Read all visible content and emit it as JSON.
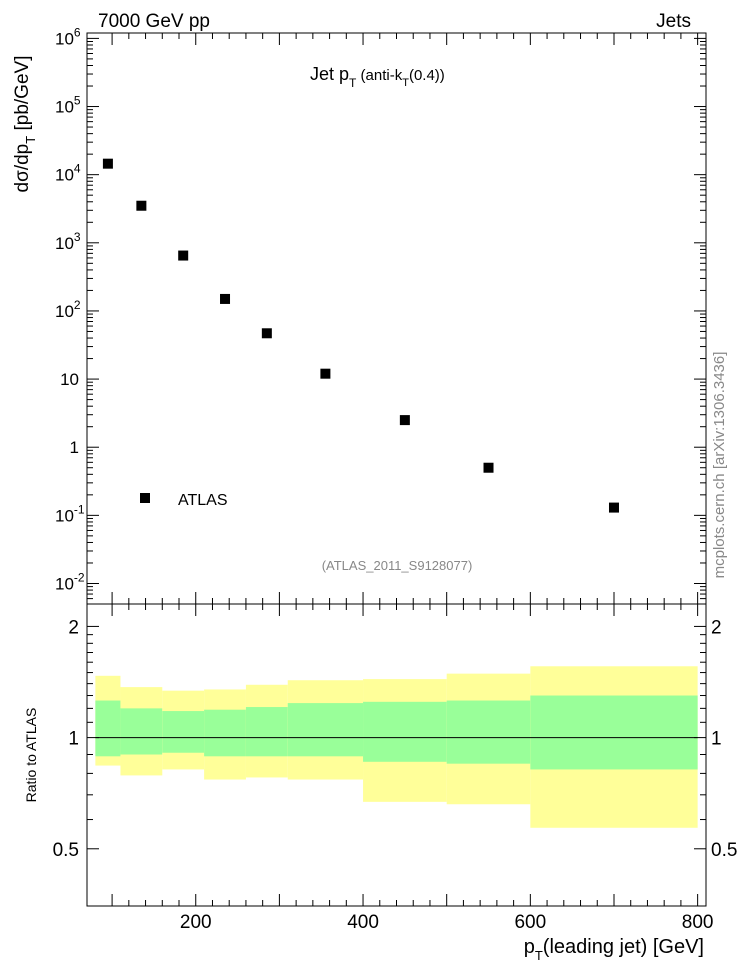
{
  "header": {
    "left": "7000 GeV pp",
    "right": "Jets"
  },
  "side_label": "mcplots.cern.ch [arXiv:1306.3436]",
  "chart_data": [
    {
      "type": "scatter",
      "title": {
        "main": "Jet p",
        "sub": "T",
        "extra_pre": " (anti-k",
        "extra_sub": "T",
        "extra_post": "(0.4))"
      },
      "ylabel": {
        "main": "dσ/dp",
        "sub": "T",
        "post": " [pb/GeV]"
      },
      "yscale": "log",
      "ylim": [
        0.005,
        1200000
      ],
      "xlim": [
        70,
        810
      ],
      "y_ticks": [
        {
          "value": 0.01,
          "base": "10",
          "exp": "-2"
        },
        {
          "value": 0.1,
          "base": "10",
          "exp": "-1"
        },
        {
          "value": 1,
          "base": "1",
          "exp": ""
        },
        {
          "value": 10,
          "base": "10",
          "exp": ""
        },
        {
          "value": 100,
          "base": "10",
          "exp": "2"
        },
        {
          "value": 1000,
          "base": "10",
          "exp": "3"
        },
        {
          "value": 10000,
          "base": "10",
          "exp": "4"
        },
        {
          "value": 100000,
          "base": "10",
          "exp": "5"
        },
        {
          "value": 1000000,
          "base": "10",
          "exp": "6"
        }
      ],
      "series": [
        {
          "name": "ATLAS",
          "x": [
            95,
            135,
            185,
            235,
            285,
            355,
            450,
            550,
            700
          ],
          "y": [
            14500,
            3500,
            650,
            150,
            47,
            12,
            2.5,
            0.5,
            0.13
          ]
        }
      ],
      "legend_position": "bottom-left",
      "analysis_label": "(ATLAS_2011_S9128077)"
    },
    {
      "type": "area",
      "ylabel": "Ratio to ATLAS",
      "xlabel": {
        "main": "p",
        "sub": "T",
        "post": "(leading jet) [GeV]"
      },
      "ylim": [
        0.35,
        2.3
      ],
      "xlim": [
        70,
        810
      ],
      "x_ticks": [
        200,
        400,
        600,
        800
      ],
      "y_ticks": [
        0.5,
        1,
        2
      ],
      "reference_line": 1,
      "bins": [
        {
          "x0": 80,
          "x1": 110,
          "yellow": [
            0.84,
            1.47
          ],
          "green": [
            0.89,
            1.26
          ]
        },
        {
          "x0": 110,
          "x1": 160,
          "yellow": [
            0.79,
            1.37
          ],
          "green": [
            0.9,
            1.2
          ]
        },
        {
          "x0": 160,
          "x1": 210,
          "yellow": [
            0.82,
            1.34
          ],
          "green": [
            0.91,
            1.18
          ]
        },
        {
          "x0": 210,
          "x1": 260,
          "yellow": [
            0.77,
            1.35
          ],
          "green": [
            0.89,
            1.19
          ]
        },
        {
          "x0": 260,
          "x1": 310,
          "yellow": [
            0.78,
            1.39
          ],
          "green": [
            0.89,
            1.21
          ]
        },
        {
          "x0": 310,
          "x1": 400,
          "yellow": [
            0.77,
            1.43
          ],
          "green": [
            0.89,
            1.24
          ]
        },
        {
          "x0": 400,
          "x1": 500,
          "yellow": [
            0.67,
            1.44
          ],
          "green": [
            0.86,
            1.25
          ]
        },
        {
          "x0": 500,
          "x1": 600,
          "yellow": [
            0.66,
            1.49
          ],
          "green": [
            0.85,
            1.26
          ]
        },
        {
          "x0": 600,
          "x1": 800,
          "yellow": [
            0.57,
            1.56
          ],
          "green": [
            0.82,
            1.3
          ]
        }
      ],
      "colors": {
        "yellow": "#ffff99",
        "green": "#99ff99",
        "marker": "#000000",
        "analysis_label": "#888888"
      }
    }
  ]
}
